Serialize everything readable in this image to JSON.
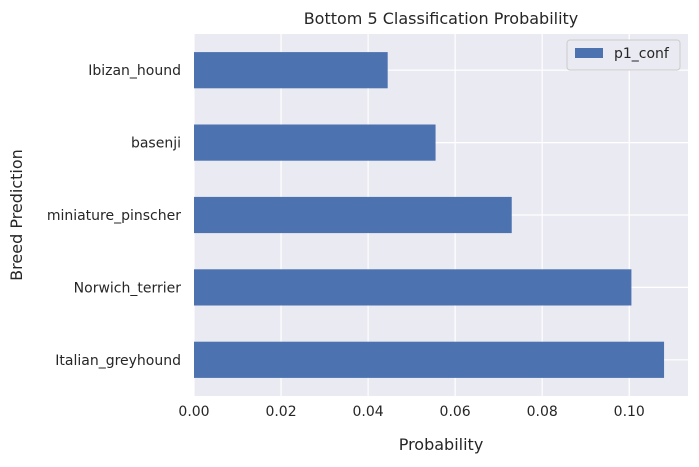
{
  "chart_data": {
    "type": "bar",
    "orientation": "horizontal",
    "title": "Bottom 5 Classification Probability",
    "xlabel": "Probability",
    "ylabel": "Breed Prediction",
    "categories": [
      "Italian_greyhound",
      "Norwich_terrier",
      "miniature_pinscher",
      "basenji",
      "Ibizan_hound"
    ],
    "series": [
      {
        "name": "p1_conf",
        "values": [
          0.108,
          0.1005,
          0.073,
          0.0555,
          0.0445
        ]
      }
    ],
    "xlim": [
      0,
      0.1135
    ],
    "xticks": [
      "0.00",
      "0.02",
      "0.04",
      "0.06",
      "0.08",
      "0.10"
    ],
    "xtick_values": [
      0,
      0.02,
      0.04,
      0.06,
      0.08,
      0.1
    ],
    "grid": true,
    "legend_position": "top-right",
    "colors": {
      "bar": "#4c72b0",
      "plot_bg": "#eaeaf2",
      "grid": "#ffffff",
      "text": "#262626"
    }
  }
}
